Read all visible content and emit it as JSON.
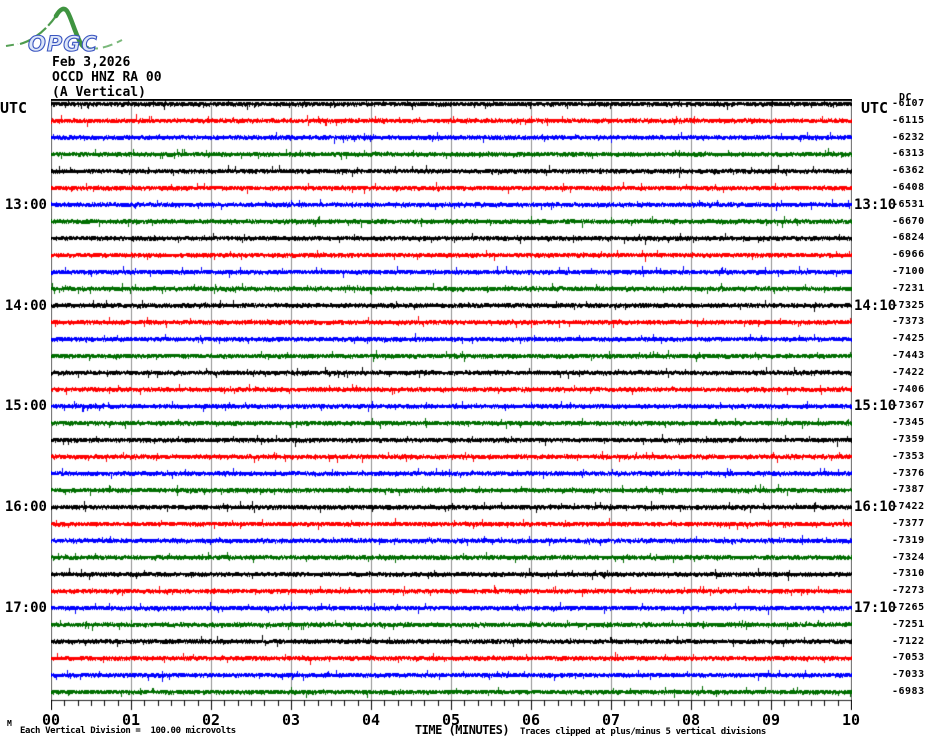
{
  "header": {
    "logo_text": "OPGC",
    "date": "Feb 3,2026",
    "station": "OCCD HNZ RA 00",
    "component": "(A Vertical)"
  },
  "axes": {
    "utc_left": "UTC",
    "utc_right": "UTC",
    "dc_header": "DC",
    "x_ticks": [
      "00",
      "01",
      "02",
      "03",
      "04",
      "05",
      "06",
      "07",
      "08",
      "09",
      "10"
    ],
    "x_title": "TIME (MINUTES)",
    "footer_left": "Each Vertical Division =  100.00 microvolts",
    "footer_right": "Traces clipped at plus/minus 5 vertical divisions",
    "corner_glyph": "M"
  },
  "chart_data": {
    "type": "line",
    "subtype": "helicorder-seismogram",
    "station_channel": "OCCD HNZ RA 00 (A Vertical)",
    "date": "Feb 3,2026",
    "x_axis": {
      "label": "TIME (MINUTES)",
      "range": [
        0,
        10
      ],
      "major_tick_every_min": 1,
      "minor_ticks_per_major": 6
    },
    "minutes_per_row": 10,
    "vertical_division_microvolts": 100.0,
    "clip_note": "Traces clipped at plus/minus 5 vertical divisions",
    "waveform": "flat background noise on every row (~±1 vertical division), no visible seismic events",
    "trace_colors_cycle": [
      "#000000",
      "#ff0000",
      "#0000ff",
      "#006e00"
    ],
    "grid_color": "#8f8f8f",
    "noise_seed": 12345,
    "rows": [
      {
        "left_label": "",
        "right_label": "",
        "dc": "-6107"
      },
      {
        "left_label": "",
        "right_label": "",
        "dc": "-6115"
      },
      {
        "left_label": "",
        "right_label": "",
        "dc": "-6232"
      },
      {
        "left_label": "",
        "right_label": "",
        "dc": "-6313"
      },
      {
        "left_label": "",
        "right_label": "",
        "dc": "-6362"
      },
      {
        "left_label": "",
        "right_label": "",
        "dc": "-6408"
      },
      {
        "left_label": "13:00",
        "right_label": "13:10",
        "dc": "-6531"
      },
      {
        "left_label": "",
        "right_label": "",
        "dc": "-6670"
      },
      {
        "left_label": "",
        "right_label": "",
        "dc": "-6824"
      },
      {
        "left_label": "",
        "right_label": "",
        "dc": "-6966"
      },
      {
        "left_label": "",
        "right_label": "",
        "dc": "-7100"
      },
      {
        "left_label": "",
        "right_label": "",
        "dc": "-7231"
      },
      {
        "left_label": "14:00",
        "right_label": "14:10",
        "dc": "-7325"
      },
      {
        "left_label": "",
        "right_label": "",
        "dc": "-7373"
      },
      {
        "left_label": "",
        "right_label": "",
        "dc": "-7425"
      },
      {
        "left_label": "",
        "right_label": "",
        "dc": "-7443"
      },
      {
        "left_label": "",
        "right_label": "",
        "dc": "-7422"
      },
      {
        "left_label": "",
        "right_label": "",
        "dc": "-7406"
      },
      {
        "left_label": "15:00",
        "right_label": "15:10",
        "dc": "-7367"
      },
      {
        "left_label": "",
        "right_label": "",
        "dc": "-7345"
      },
      {
        "left_label": "",
        "right_label": "",
        "dc": "-7359"
      },
      {
        "left_label": "",
        "right_label": "",
        "dc": "-7353"
      },
      {
        "left_label": "",
        "right_label": "",
        "dc": "-7376"
      },
      {
        "left_label": "",
        "right_label": "",
        "dc": "-7387"
      },
      {
        "left_label": "16:00",
        "right_label": "16:10",
        "dc": "-7422"
      },
      {
        "left_label": "",
        "right_label": "",
        "dc": "-7377"
      },
      {
        "left_label": "",
        "right_label": "",
        "dc": "-7319"
      },
      {
        "left_label": "",
        "right_label": "",
        "dc": "-7324"
      },
      {
        "left_label": "",
        "right_label": "",
        "dc": "-7310"
      },
      {
        "left_label": "",
        "right_label": "",
        "dc": "-7273"
      },
      {
        "left_label": "17:00",
        "right_label": "17:10",
        "dc": "-7265"
      },
      {
        "left_label": "",
        "right_label": "",
        "dc": "-7251"
      },
      {
        "left_label": "",
        "right_label": "",
        "dc": "-7122"
      },
      {
        "left_label": "",
        "right_label": "",
        "dc": "-7053"
      },
      {
        "left_label": "",
        "right_label": "",
        "dc": "-7033"
      },
      {
        "left_label": "",
        "right_label": "",
        "dc": "-6983"
      }
    ]
  }
}
